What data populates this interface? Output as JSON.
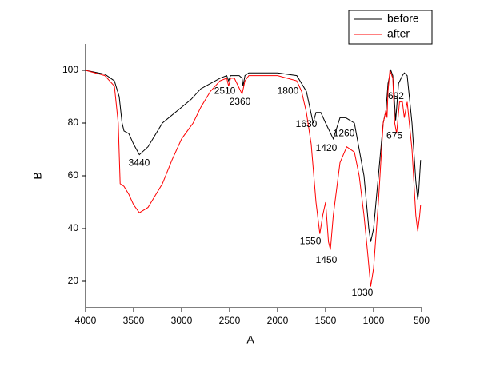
{
  "chart_data": {
    "type": "line",
    "x_label": "A",
    "y_label": "B",
    "xlim": [
      4000,
      500
    ],
    "xticks": [
      4000,
      3500,
      3000,
      2500,
      2000,
      1500,
      1000,
      500
    ],
    "ylim": [
      10,
      110
    ],
    "yticks": [
      20,
      40,
      60,
      80,
      100
    ],
    "legend": "upper right",
    "series": [
      {
        "name": "before",
        "color": "#000000",
        "x": [
          4000,
          3800,
          3700,
          3650,
          3620,
          3600,
          3550,
          3500,
          3440,
          3350,
          3200,
          3000,
          2900,
          2800,
          2600,
          2530,
          2510,
          2490,
          2400,
          2370,
          2360,
          2340,
          2300,
          2000,
          1800,
          1700,
          1630,
          1600,
          1550,
          1500,
          1420,
          1350,
          1290,
          1200,
          1100,
          1050,
          1030,
          1000,
          950,
          900,
          870,
          850,
          820,
          800,
          770,
          740,
          700,
          680,
          650,
          600,
          560,
          540,
          530,
          510
        ],
        "values": [
          100,
          98.5,
          96,
          90,
          80,
          77,
          76,
          72,
          68,
          71,
          80,
          86,
          89,
          93,
          97,
          98,
          96,
          98,
          98,
          97,
          94,
          98,
          99,
          99,
          98,
          92,
          80,
          84,
          84,
          80,
          74,
          82,
          82,
          80,
          60,
          40,
          35,
          40,
          60,
          80,
          85,
          95,
          100,
          98,
          81,
          95,
          98,
          99,
          98,
          80,
          58,
          51,
          54,
          66
        ]
      },
      {
        "name": "after",
        "color": "#ff0000",
        "x": [
          4000,
          3800,
          3700,
          3660,
          3640,
          3600,
          3550,
          3500,
          3440,
          3350,
          3200,
          3100,
          3000,
          2900,
          2880,
          2800,
          2700,
          2600,
          2530,
          2510,
          2490,
          2450,
          2370,
          2340,
          2300,
          2000,
          1800,
          1750,
          1700,
          1650,
          1600,
          1560,
          1530,
          1500,
          1470,
          1450,
          1420,
          1350,
          1280,
          1200,
          1150,
          1100,
          1060,
          1030,
          1000,
          950,
          900,
          870,
          860,
          850,
          830,
          800,
          780,
          760,
          730,
          700,
          680,
          660,
          650,
          600,
          560,
          540,
          520,
          510
        ],
        "values": [
          100,
          98,
          94,
          80,
          57,
          56,
          53,
          49,
          46,
          48,
          57,
          66,
          74,
          79,
          80,
          86,
          92,
          96,
          97,
          94,
          97,
          97,
          91,
          96,
          98,
          98,
          96,
          92,
          84,
          72,
          50,
          38,
          45,
          50,
          35,
          32,
          45,
          65,
          71,
          69,
          60,
          45,
          30,
          18,
          25,
          50,
          80,
          85,
          82,
          92,
          100,
          97,
          80,
          76,
          88,
          88,
          82,
          86,
          88,
          70,
          45,
          39,
          45,
          49
        ]
      }
    ],
    "annotations": [
      {
        "label": "3440",
        "x": 3442,
        "y": 64.7
      },
      {
        "label": "2510",
        "x": 2550,
        "y": 92
      },
      {
        "label": "2360",
        "x": 2392,
        "y": 88
      },
      {
        "label": "1800",
        "x": 1892,
        "y": 92
      },
      {
        "label": "1630",
        "x": 1700,
        "y": 79.5
      },
      {
        "label": "1260",
        "x": 1308,
        "y": 76
      },
      {
        "label": "1420",
        "x": 1492,
        "y": 70.4
      },
      {
        "label": "1550",
        "x": 1658,
        "y": 35
      },
      {
        "label": "1450",
        "x": 1492,
        "y": 28
      },
      {
        "label": "1030",
        "x": 1117,
        "y": 15.5
      },
      {
        "label": "692",
        "x": 767,
        "y": 90
      },
      {
        "label": "675",
        "x": 783,
        "y": 75
      }
    ]
  }
}
